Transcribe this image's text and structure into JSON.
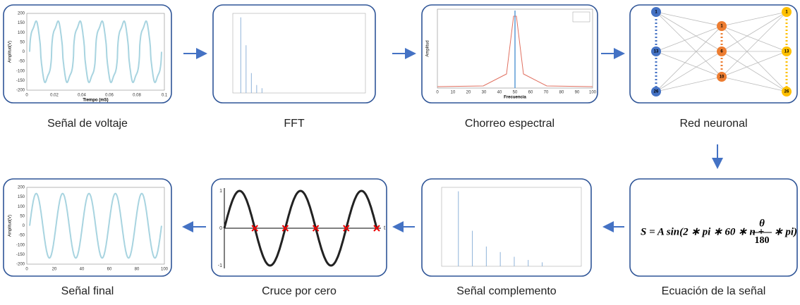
{
  "nodes": [
    {
      "label": "Señal de voltaje",
      "plot": {
        "y_label": "Amplitud(V)",
        "x_label": "Tiempo (mS)",
        "xticks": [
          "0",
          "0.02",
          "0.04",
          "0.06",
          "0.08",
          "0.1"
        ],
        "yticks": [
          "200",
          "150",
          "100",
          "50",
          "0",
          "-50",
          "-100",
          "-150",
          "-200"
        ]
      }
    },
    {
      "label": "FFT"
    },
    {
      "label": "Chorreo espectral",
      "plot": {
        "y_label": "Amplitud",
        "x_label": "Frecuencia",
        "xticks": [
          "0",
          "10",
          "20",
          "30",
          "40",
          "50",
          "60",
          "70",
          "80",
          "90",
          "100"
        ]
      }
    },
    {
      "label": "Red neuronal",
      "layers": [
        [
          "1",
          "13",
          "26"
        ],
        [
          "1",
          "6",
          "10"
        ],
        [
          "1",
          "13",
          "26"
        ]
      ]
    },
    {
      "label": "Ecuación de la señal",
      "equation": {
        "left": "S = A sin(2 ∗ pi ∗ 60 ∗ n +",
        "numerator": "θ",
        "denominator": "180",
        "right": "∗ pi)"
      }
    },
    {
      "label": "Señal complemento"
    },
    {
      "label": "Cruce por cero",
      "plot": {
        "yticks": [
          "1",
          "0",
          "-1"
        ],
        "x_label": "t"
      }
    },
    {
      "label": "Señal final",
      "plot": {
        "y_label": "Amplitud(V)",
        "xticks": [
          "0",
          "20",
          "40",
          "60",
          "80",
          "100"
        ],
        "yticks": [
          "200",
          "150",
          "100",
          "50",
          "0",
          "-50",
          "-100",
          "-150",
          "-200"
        ]
      }
    }
  ]
}
